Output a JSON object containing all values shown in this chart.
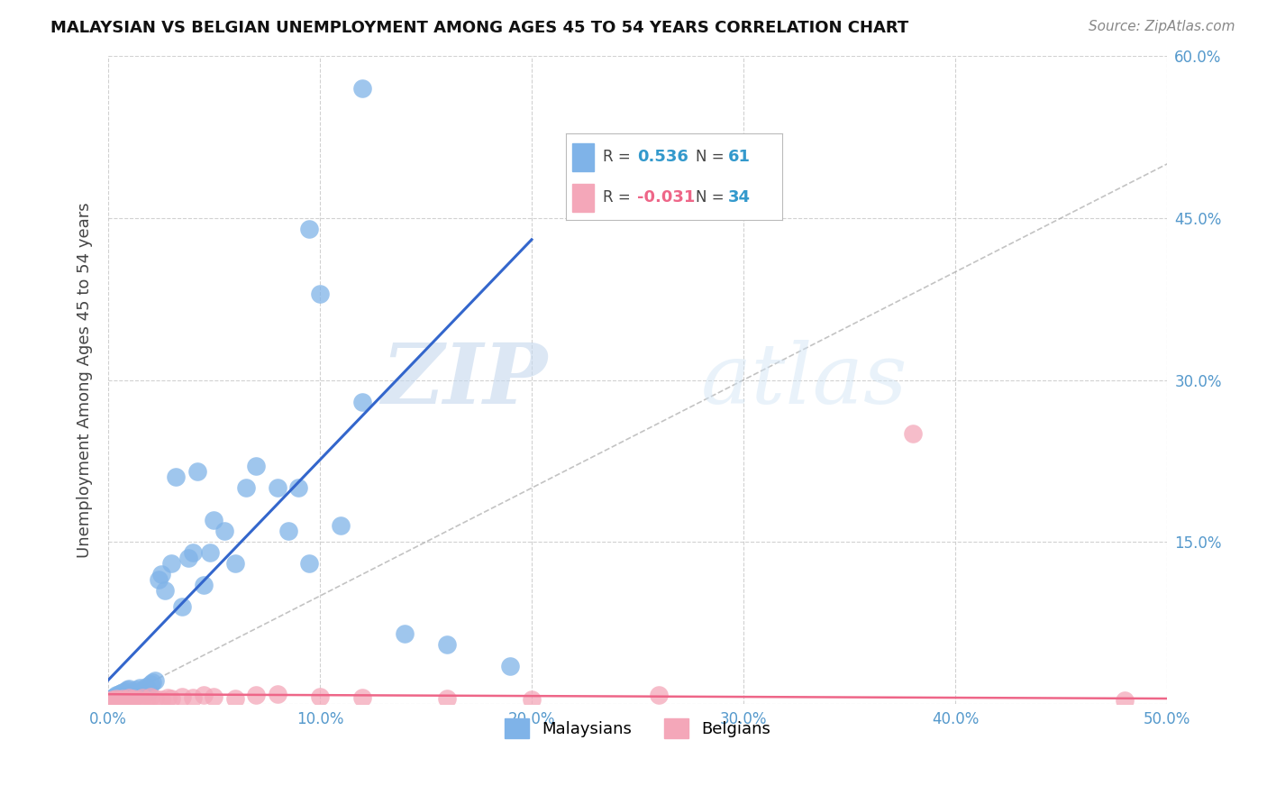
{
  "title": "MALAYSIAN VS BELGIAN UNEMPLOYMENT AMONG AGES 45 TO 54 YEARS CORRELATION CHART",
  "source": "Source: ZipAtlas.com",
  "ylabel": "Unemployment Among Ages 45 to 54 years",
  "xlim": [
    0.0,
    0.5
  ],
  "ylim": [
    0.0,
    0.6
  ],
  "xticks": [
    0.0,
    0.1,
    0.2,
    0.3,
    0.4,
    0.5
  ],
  "yticks": [
    0.0,
    0.15,
    0.3,
    0.45,
    0.6
  ],
  "ytick_labels": [
    "",
    "15.0%",
    "30.0%",
    "45.0%",
    "60.0%"
  ],
  "xtick_labels": [
    "0.0%",
    "10.0%",
    "20.0%",
    "30.0%",
    "40.0%",
    "50.0%"
  ],
  "malaysian_color": "#7fb3e8",
  "belgian_color": "#f4a7b9",
  "regression_blue": "#3366cc",
  "regression_pink": "#ee6688",
  "legend_malaysian": "Malaysians",
  "legend_belgian": "Belgians",
  "r_malaysian": 0.536,
  "n_malaysian": 61,
  "r_belgian": -0.031,
  "n_belgian": 34,
  "background_color": "#ffffff",
  "grid_color": "#cccccc",
  "watermark_zip": "ZIP",
  "watermark_atlas": "atlas",
  "mal_x": [
    0.001,
    0.002,
    0.003,
    0.003,
    0.004,
    0.004,
    0.005,
    0.005,
    0.006,
    0.006,
    0.007,
    0.007,
    0.008,
    0.008,
    0.009,
    0.009,
    0.01,
    0.01,
    0.011,
    0.012,
    0.012,
    0.013,
    0.013,
    0.014,
    0.015,
    0.015,
    0.016,
    0.017,
    0.018,
    0.019,
    0.02,
    0.021,
    0.022,
    0.024,
    0.025,
    0.027,
    0.03,
    0.032,
    0.035,
    0.038,
    0.04,
    0.042,
    0.045,
    0.048,
    0.05,
    0.055,
    0.06,
    0.065,
    0.07,
    0.08,
    0.085,
    0.09,
    0.095,
    0.1,
    0.11,
    0.12,
    0.14,
    0.16,
    0.19,
    0.12,
    0.095
  ],
  "mal_y": [
    0.004,
    0.006,
    0.003,
    0.007,
    0.005,
    0.008,
    0.004,
    0.009,
    0.006,
    0.01,
    0.005,
    0.011,
    0.007,
    0.012,
    0.006,
    0.013,
    0.008,
    0.014,
    0.01,
    0.009,
    0.011,
    0.008,
    0.013,
    0.01,
    0.012,
    0.015,
    0.011,
    0.013,
    0.016,
    0.012,
    0.018,
    0.02,
    0.022,
    0.115,
    0.12,
    0.105,
    0.13,
    0.21,
    0.09,
    0.135,
    0.14,
    0.215,
    0.11,
    0.14,
    0.17,
    0.16,
    0.13,
    0.2,
    0.22,
    0.2,
    0.16,
    0.2,
    0.13,
    0.38,
    0.165,
    0.28,
    0.065,
    0.055,
    0.035,
    0.57,
    0.44
  ],
  "bel_x": [
    0.001,
    0.002,
    0.003,
    0.004,
    0.005,
    0.006,
    0.007,
    0.008,
    0.009,
    0.01,
    0.011,
    0.012,
    0.014,
    0.016,
    0.018,
    0.02,
    0.022,
    0.025,
    0.028,
    0.03,
    0.035,
    0.04,
    0.045,
    0.05,
    0.06,
    0.07,
    0.08,
    0.1,
    0.12,
    0.16,
    0.2,
    0.26,
    0.38,
    0.48
  ],
  "bel_y": [
    0.003,
    0.004,
    0.003,
    0.005,
    0.004,
    0.003,
    0.005,
    0.004,
    0.003,
    0.006,
    0.004,
    0.005,
    0.004,
    0.006,
    0.003,
    0.007,
    0.005,
    0.004,
    0.006,
    0.005,
    0.007,
    0.006,
    0.008,
    0.007,
    0.005,
    0.008,
    0.009,
    0.007,
    0.006,
    0.005,
    0.004,
    0.008,
    0.25,
    0.003
  ],
  "blue_line_x": [
    0.0,
    0.2
  ],
  "blue_line_y": [
    0.022,
    0.43
  ],
  "pink_line_x": [
    0.0,
    0.5
  ],
  "pink_line_y": [
    0.009,
    0.005
  ]
}
